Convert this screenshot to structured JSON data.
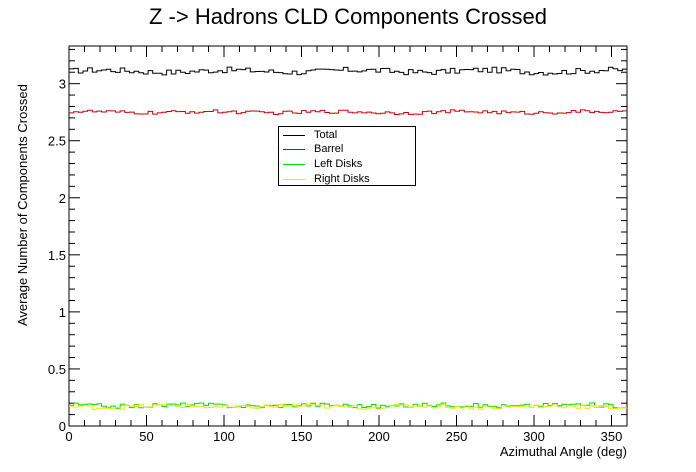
{
  "chart_data": {
    "type": "line",
    "title": "Z -> Hadrons CLD Components Crossed",
    "xlabel": "Azimuthal Angle (deg)",
    "ylabel": "Average Number of Components Crossed",
    "xlim": [
      0,
      360
    ],
    "ylim": [
      0,
      3.33
    ],
    "x_ticks": [
      "0",
      "50",
      "100",
      "150",
      "200",
      "250",
      "300",
      "350"
    ],
    "y_ticks": [
      "0",
      "0.5",
      "1",
      "1.5",
      "2",
      "2.5",
      "3"
    ],
    "n_bins": 120,
    "grid": false,
    "legend_position": "upper-center",
    "series": [
      {
        "name": "Total",
        "color": "#000000",
        "mean": 3.11,
        "jitter": 0.025
      },
      {
        "name": "Barrel",
        "color": "#cc0000",
        "mean": 2.75,
        "jitter": 0.015
      },
      {
        "name": "Left Disks",
        "color": "#00dd00",
        "mean": 0.18,
        "jitter": 0.018
      },
      {
        "name": "Right Disks",
        "color": "#f2e400",
        "mean": 0.17,
        "jitter": 0.018
      }
    ]
  }
}
